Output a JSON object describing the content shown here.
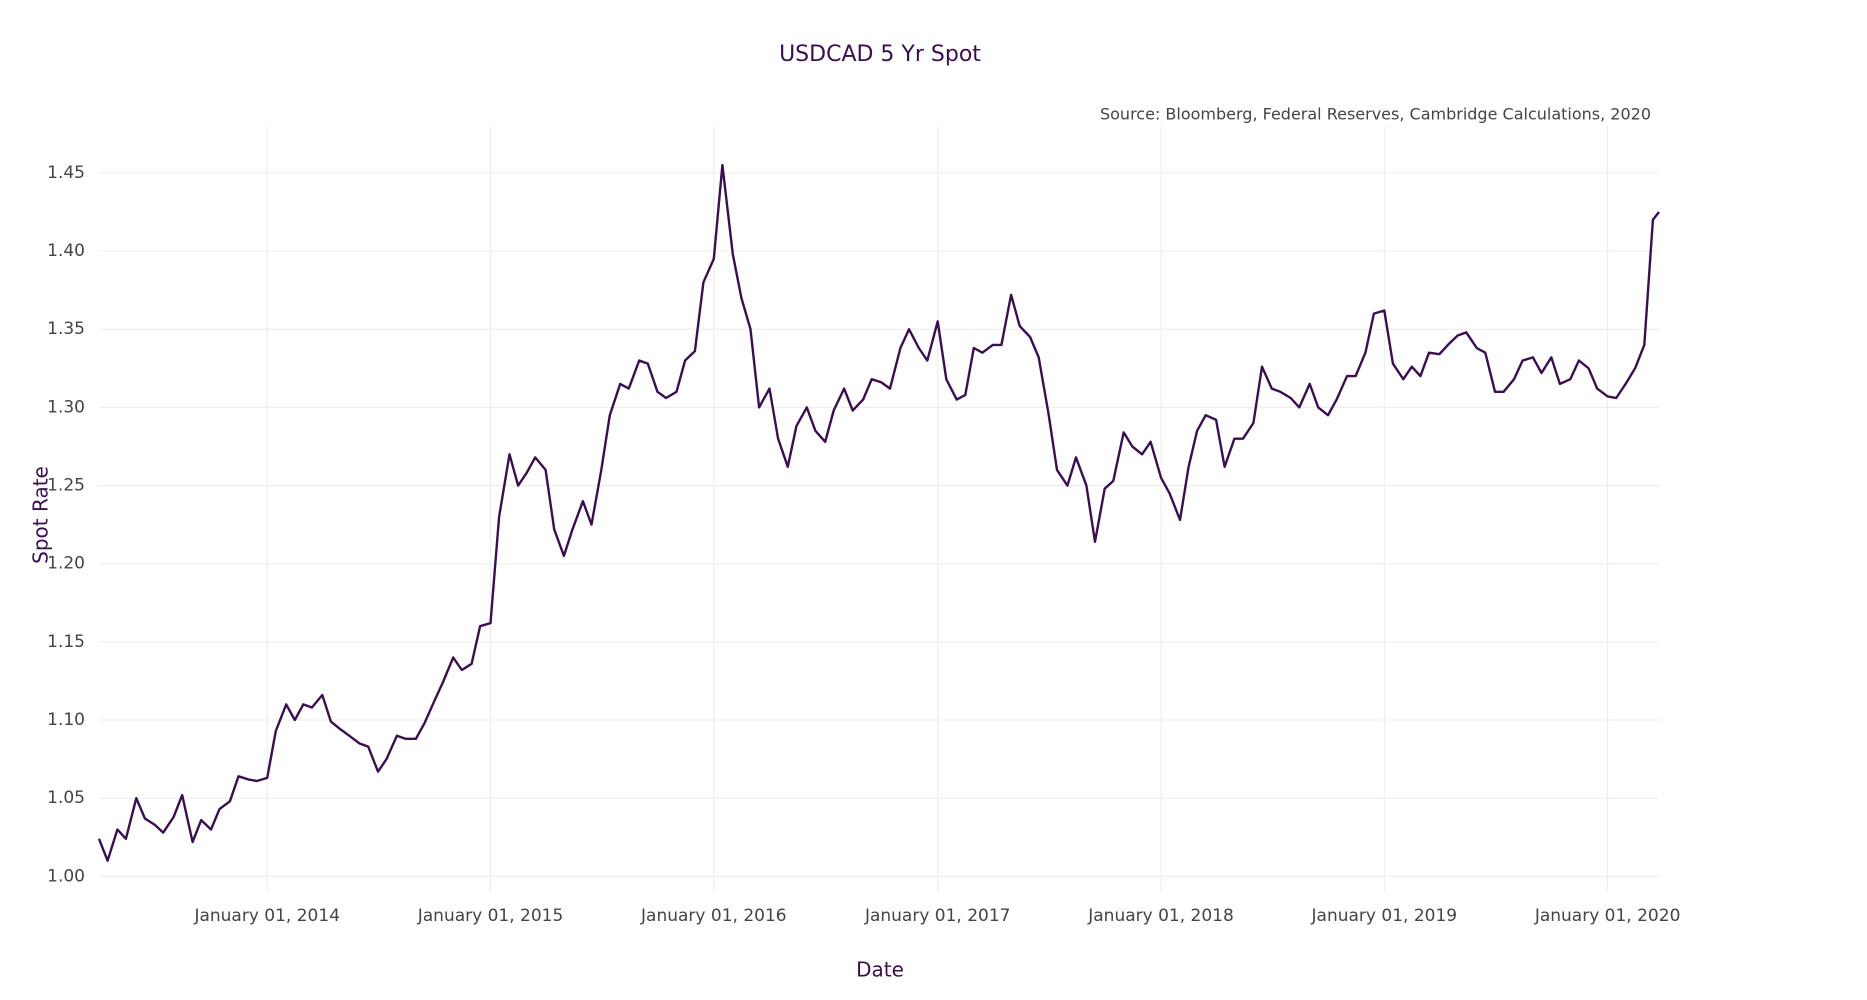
{
  "chart_data": {
    "type": "line",
    "title": "USDCAD 5 Yr Spot",
    "subtitle": "Source: Bloomberg, Federal Reserves, Cambridge Calculations, 2020",
    "x_label": "Date",
    "y_label": "Spot Rate",
    "x": [
      "2013-04-01",
      "2013-04-15",
      "2013-05-01",
      "2013-05-15",
      "2013-06-01",
      "2013-06-15",
      "2013-07-01",
      "2013-07-15",
      "2013-08-01",
      "2013-08-15",
      "2013-09-01",
      "2013-09-15",
      "2013-10-01",
      "2013-10-15",
      "2013-11-01",
      "2013-11-15",
      "2013-12-01",
      "2013-12-15",
      "2014-01-01",
      "2014-01-15",
      "2014-02-01",
      "2014-02-15",
      "2014-03-01",
      "2014-03-15",
      "2014-04-01",
      "2014-04-15",
      "2014-05-01",
      "2014-05-15",
      "2014-06-01",
      "2014-06-15",
      "2014-07-01",
      "2014-07-15",
      "2014-08-01",
      "2014-08-15",
      "2014-09-01",
      "2014-09-15",
      "2014-10-01",
      "2014-10-15",
      "2014-11-01",
      "2014-11-15",
      "2014-12-01",
      "2014-12-15",
      "2015-01-01",
      "2015-01-15",
      "2015-02-01",
      "2015-02-15",
      "2015-03-01",
      "2015-03-15",
      "2015-04-01",
      "2015-04-15",
      "2015-05-01",
      "2015-05-15",
      "2015-06-01",
      "2015-06-15",
      "2015-07-01",
      "2015-07-15",
      "2015-08-01",
      "2015-08-15",
      "2015-09-01",
      "2015-09-15",
      "2015-10-01",
      "2015-10-15",
      "2015-11-01",
      "2015-11-15",
      "2015-12-01",
      "2015-12-15",
      "2016-01-01",
      "2016-01-15",
      "2016-02-01",
      "2016-02-15",
      "2016-03-01",
      "2016-03-15",
      "2016-04-01",
      "2016-04-15",
      "2016-05-01",
      "2016-05-15",
      "2016-06-01",
      "2016-06-15",
      "2016-07-01",
      "2016-07-15",
      "2016-08-01",
      "2016-08-15",
      "2016-09-01",
      "2016-09-15",
      "2016-10-01",
      "2016-10-15",
      "2016-11-01",
      "2016-11-15",
      "2016-12-01",
      "2016-12-15",
      "2017-01-01",
      "2017-01-15",
      "2017-02-01",
      "2017-02-15",
      "2017-03-01",
      "2017-03-15",
      "2017-04-01",
      "2017-04-15",
      "2017-05-01",
      "2017-05-15",
      "2017-06-01",
      "2017-06-15",
      "2017-07-01",
      "2017-07-15",
      "2017-08-01",
      "2017-08-15",
      "2017-09-01",
      "2017-09-15",
      "2017-10-01",
      "2017-10-15",
      "2017-11-01",
      "2017-11-15",
      "2017-12-01",
      "2017-12-15",
      "2018-01-01",
      "2018-01-15",
      "2018-02-01",
      "2018-02-15",
      "2018-03-01",
      "2018-03-15",
      "2018-04-01",
      "2018-04-15",
      "2018-05-01",
      "2018-05-15",
      "2018-06-01",
      "2018-06-15",
      "2018-07-01",
      "2018-07-15",
      "2018-08-01",
      "2018-08-15",
      "2018-09-01",
      "2018-09-15",
      "2018-10-01",
      "2018-10-15",
      "2018-11-01",
      "2018-11-15",
      "2018-12-01",
      "2018-12-15",
      "2019-01-01",
      "2019-01-15",
      "2019-02-01",
      "2019-02-15",
      "2019-03-01",
      "2019-03-15",
      "2019-04-01",
      "2019-04-15",
      "2019-05-01",
      "2019-05-15",
      "2019-06-01",
      "2019-06-15",
      "2019-07-01",
      "2019-07-15",
      "2019-08-01",
      "2019-08-15",
      "2019-09-01",
      "2019-09-15",
      "2019-10-01",
      "2019-10-15",
      "2019-11-01",
      "2019-11-15",
      "2019-12-01",
      "2019-12-15",
      "2020-01-01",
      "2020-01-15",
      "2020-02-01",
      "2020-02-15",
      "2020-03-01",
      "2020-03-15",
      "2020-03-25"
    ],
    "series": [
      {
        "name": "USDCAD",
        "color": "#3b0f4f",
        "values": [
          1.024,
          1.01,
          1.03,
          1.024,
          1.05,
          1.037,
          1.033,
          1.028,
          1.038,
          1.052,
          1.022,
          1.036,
          1.03,
          1.043,
          1.048,
          1.064,
          1.062,
          1.061,
          1.063,
          1.093,
          1.11,
          1.1,
          1.11,
          1.108,
          1.116,
          1.099,
          1.094,
          1.09,
          1.085,
          1.083,
          1.067,
          1.075,
          1.09,
          1.088,
          1.088,
          1.098,
          1.112,
          1.124,
          1.14,
          1.132,
          1.136,
          1.16,
          1.162,
          1.23,
          1.27,
          1.25,
          1.258,
          1.268,
          1.26,
          1.222,
          1.205,
          1.222,
          1.24,
          1.225,
          1.26,
          1.295,
          1.315,
          1.312,
          1.33,
          1.328,
          1.31,
          1.306,
          1.31,
          1.33,
          1.336,
          1.38,
          1.395,
          1.455,
          1.398,
          1.37,
          1.35,
          1.3,
          1.312,
          1.28,
          1.262,
          1.288,
          1.3,
          1.285,
          1.278,
          1.298,
          1.312,
          1.298,
          1.305,
          1.318,
          1.316,
          1.312,
          1.338,
          1.35,
          1.338,
          1.33,
          1.355,
          1.318,
          1.305,
          1.308,
          1.338,
          1.335,
          1.34,
          1.34,
          1.372,
          1.352,
          1.345,
          1.332,
          1.296,
          1.26,
          1.25,
          1.268,
          1.25,
          1.214,
          1.248,
          1.253,
          1.284,
          1.275,
          1.27,
          1.278,
          1.255,
          1.245,
          1.228,
          1.262,
          1.285,
          1.295,
          1.292,
          1.262,
          1.28,
          1.28,
          1.29,
          1.326,
          1.312,
          1.31,
          1.306,
          1.3,
          1.315,
          1.3,
          1.295,
          1.305,
          1.32,
          1.32,
          1.335,
          1.36,
          1.362,
          1.328,
          1.318,
          1.326,
          1.32,
          1.335,
          1.334,
          1.34,
          1.346,
          1.348,
          1.338,
          1.335,
          1.31,
          1.31,
          1.318,
          1.33,
          1.332,
          1.322,
          1.332,
          1.315,
          1.318,
          1.33,
          1.325,
          1.312,
          1.307,
          1.306,
          1.316,
          1.325,
          1.34,
          1.42,
          1.425
        ]
      }
    ],
    "xlim": [
      "2013-04-01",
      "2020-03-25"
    ],
    "xticks": [
      {
        "value": "2014-01-01",
        "label": "January 01, 2014"
      },
      {
        "value": "2015-01-01",
        "label": "January 01, 2015"
      },
      {
        "value": "2016-01-01",
        "label": "January 01, 2016"
      },
      {
        "value": "2017-01-01",
        "label": "January 01, 2017"
      },
      {
        "value": "2018-01-01",
        "label": "January 01, 2018"
      },
      {
        "value": "2019-01-01",
        "label": "January 01, 2019"
      },
      {
        "value": "2020-01-01",
        "label": "January 01, 2020"
      }
    ],
    "ylim": [
      0.99,
      1.48
    ],
    "yticks": [
      {
        "value": 1.0,
        "label": "1.00"
      },
      {
        "value": 1.05,
        "label": "1.05"
      },
      {
        "value": 1.1,
        "label": "1.10"
      },
      {
        "value": 1.15,
        "label": "1.15"
      },
      {
        "value": 1.2,
        "label": "1.20"
      },
      {
        "value": 1.25,
        "label": "1.25"
      },
      {
        "value": 1.3,
        "label": "1.30"
      },
      {
        "value": 1.35,
        "label": "1.35"
      },
      {
        "value": 1.4,
        "label": "1.40"
      },
      {
        "value": 1.45,
        "label": "1.45"
      }
    ],
    "grid": true
  }
}
